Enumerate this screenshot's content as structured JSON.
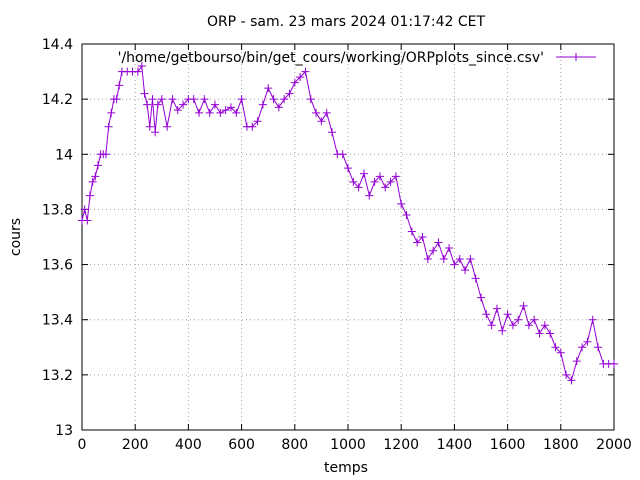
{
  "chart_data": {
    "type": "line",
    "title": "ORP - sam. 23 mars 2024 01:17:42 CET",
    "xlabel": "temps",
    "ylabel": "cours",
    "xlim": [
      0,
      2000
    ],
    "ylim": [
      13,
      14.4
    ],
    "x_ticks": [
      0,
      200,
      400,
      600,
      800,
      1000,
      1200,
      1400,
      1600,
      1800,
      2000
    ],
    "y_ticks": [
      13,
      13.2,
      13.4,
      13.6,
      13.8,
      14,
      14.2,
      14.4
    ],
    "x_tick_labels": [
      "0",
      "200",
      "400",
      "600",
      "800",
      "1000",
      "1200",
      "1400",
      "1600",
      "1800",
      "2000"
    ],
    "y_tick_labels": [
      "13",
      "13.2",
      "13.4",
      "13.6",
      "13.8",
      "14",
      "14.2",
      "14.4"
    ],
    "grid": true,
    "legend_position": "top-right",
    "series": [
      {
        "name": "'/home/getbourso/bin/get_cours/working/ORPplots_since.csv'",
        "color": "#9400d3",
        "marker": "plus",
        "x": [
          0,
          10,
          20,
          30,
          40,
          50,
          60,
          70,
          80,
          90,
          100,
          110,
          120,
          130,
          140,
          150,
          170,
          190,
          210,
          225,
          235,
          245,
          255,
          265,
          275,
          285,
          300,
          320,
          340,
          360,
          380,
          400,
          420,
          440,
          460,
          480,
          500,
          520,
          540,
          560,
          580,
          600,
          620,
          640,
          660,
          680,
          700,
          720,
          740,
          760,
          780,
          800,
          820,
          840,
          860,
          880,
          900,
          920,
          940,
          960,
          980,
          1000,
          1020,
          1040,
          1060,
          1080,
          1100,
          1120,
          1140,
          1160,
          1180,
          1200,
          1220,
          1240,
          1260,
          1280,
          1300,
          1320,
          1340,
          1360,
          1380,
          1400,
          1420,
          1440,
          1460,
          1480,
          1500,
          1520,
          1540,
          1560,
          1580,
          1600,
          1620,
          1640,
          1660,
          1680,
          1700,
          1720,
          1740,
          1760,
          1780,
          1800,
          1820,
          1840,
          1860,
          1880,
          1900,
          1920,
          1940,
          1960,
          1980,
          2000
        ],
        "values": [
          13.76,
          13.8,
          13.76,
          13.85,
          13.9,
          13.92,
          13.96,
          14.0,
          14.0,
          14.0,
          14.1,
          14.15,
          14.2,
          14.2,
          14.25,
          14.3,
          14.3,
          14.3,
          14.3,
          14.32,
          14.22,
          14.18,
          14.1,
          14.2,
          14.08,
          14.18,
          14.2,
          14.1,
          14.2,
          14.16,
          14.18,
          14.2,
          14.2,
          14.15,
          14.2,
          14.15,
          14.18,
          14.15,
          14.16,
          14.17,
          14.15,
          14.2,
          14.1,
          14.1,
          14.12,
          14.18,
          14.24,
          14.2,
          14.17,
          14.2,
          14.22,
          14.26,
          14.28,
          14.3,
          14.2,
          14.15,
          14.12,
          14.15,
          14.08,
          14.0,
          14.0,
          13.95,
          13.9,
          13.88,
          13.93,
          13.85,
          13.9,
          13.92,
          13.88,
          13.9,
          13.92,
          13.82,
          13.78,
          13.72,
          13.68,
          13.7,
          13.62,
          13.65,
          13.68,
          13.62,
          13.66,
          13.6,
          13.62,
          13.58,
          13.62,
          13.55,
          13.48,
          13.42,
          13.38,
          13.44,
          13.36,
          13.42,
          13.38,
          13.4,
          13.45,
          13.38,
          13.4,
          13.35,
          13.38,
          13.35,
          13.3,
          13.28,
          13.2,
          13.18,
          13.25,
          13.3,
          13.32,
          13.4,
          13.3,
          13.24,
          13.24,
          13.24
        ]
      }
    ]
  }
}
